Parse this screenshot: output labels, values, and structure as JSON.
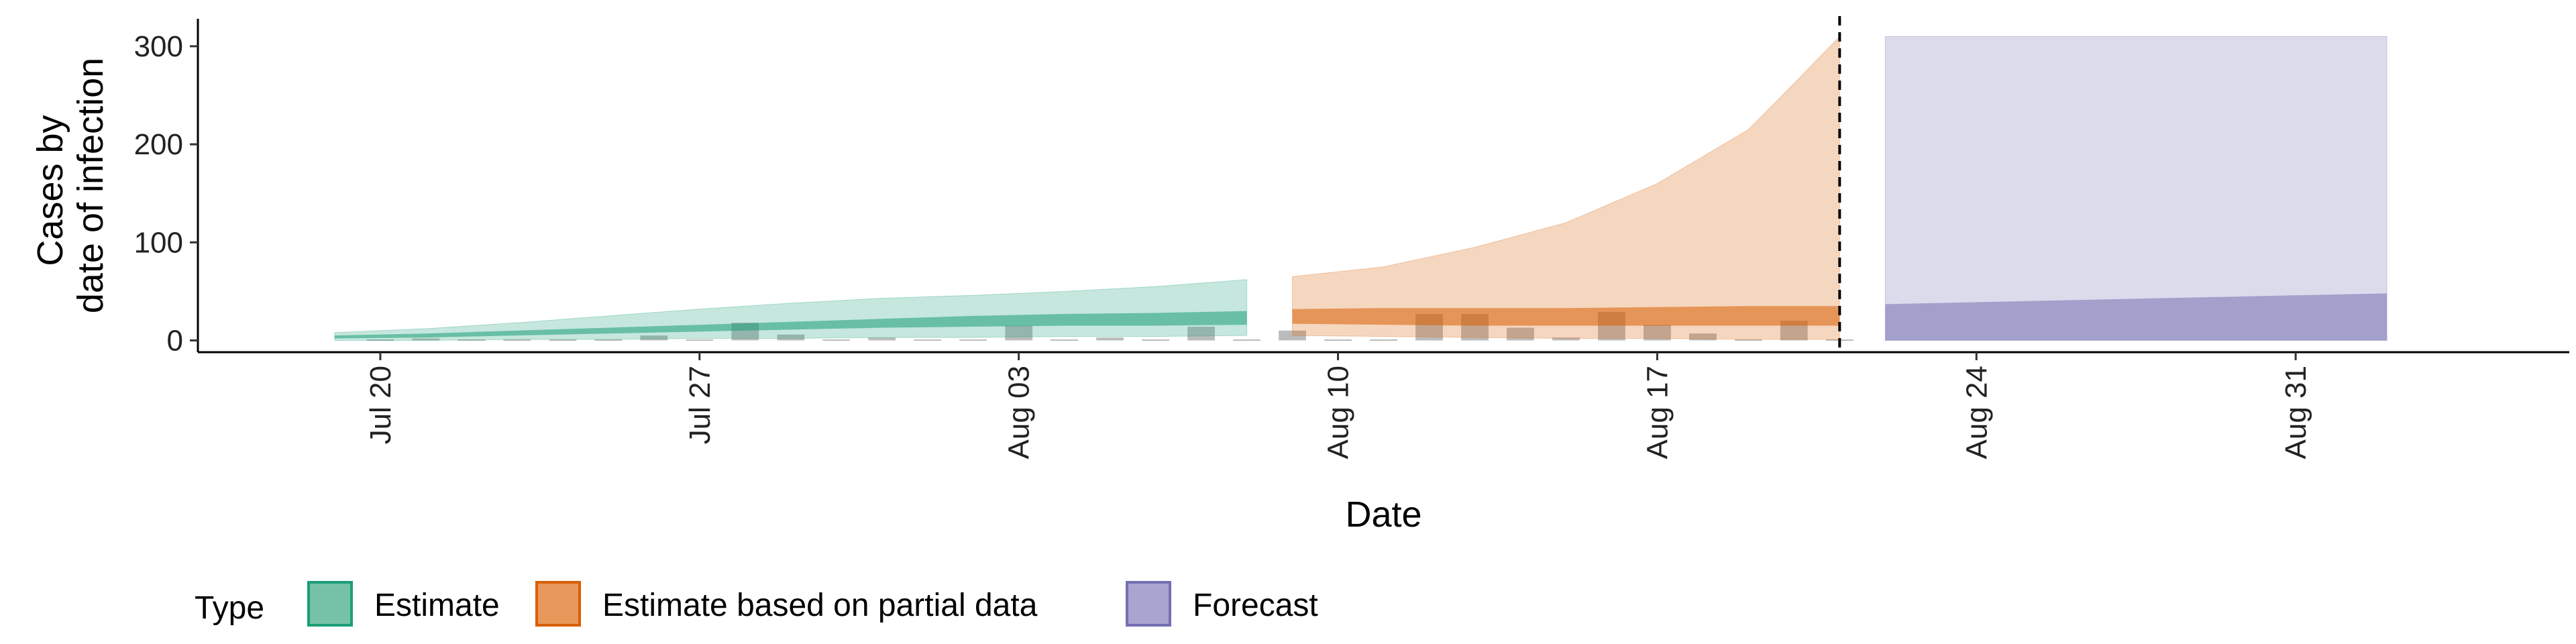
{
  "chart_data": {
    "type": "area",
    "xlabel": "Date",
    "ylabel_lines": [
      "Cases by",
      "date of infection"
    ],
    "x_range": [
      "2020-07-16",
      "2020-09-06"
    ],
    "ylim": [
      -12,
      328
    ],
    "y_ticks": [
      0,
      100,
      200,
      300
    ],
    "x_ticks": [
      {
        "date": "2020-07-20",
        "label": "Jul 20"
      },
      {
        "date": "2020-07-27",
        "label": "Jul 27"
      },
      {
        "date": "2020-08-03",
        "label": "Aug 03"
      },
      {
        "date": "2020-08-10",
        "label": "Aug 10"
      },
      {
        "date": "2020-08-17",
        "label": "Aug 17"
      },
      {
        "date": "2020-08-24",
        "label": "Aug 24"
      },
      {
        "date": "2020-08-31",
        "label": "Aug 31"
      }
    ],
    "vline_date": "2020-08-21",
    "grid": false,
    "legend": {
      "title": "Type",
      "position": "bottom",
      "items": [
        {
          "label": "Estimate",
          "fill": "#76c2a9",
          "stroke": "#1b9e77"
        },
        {
          "label": "Estimate based on partial data",
          "fill": "#e8985a",
          "stroke": "#d95f02"
        },
        {
          "label": "Forecast",
          "fill": "#a9a5d1",
          "stroke": "#7570b3"
        }
      ]
    },
    "observed_cases": {
      "color": "#a0a0a0",
      "points": [
        {
          "date": "2020-07-20",
          "value": 1
        },
        {
          "date": "2020-07-21",
          "value": 2
        },
        {
          "date": "2020-07-22",
          "value": 1
        },
        {
          "date": "2020-07-23",
          "value": 1
        },
        {
          "date": "2020-07-24",
          "value": 1
        },
        {
          "date": "2020-07-25",
          "value": 1
        },
        {
          "date": "2020-07-26",
          "value": 5
        },
        {
          "date": "2020-07-27",
          "value": 1
        },
        {
          "date": "2020-07-28",
          "value": 18
        },
        {
          "date": "2020-07-29",
          "value": 6
        },
        {
          "date": "2020-07-30",
          "value": 1
        },
        {
          "date": "2020-07-31",
          "value": 3
        },
        {
          "date": "2020-08-01",
          "value": 1
        },
        {
          "date": "2020-08-02",
          "value": 1
        },
        {
          "date": "2020-08-03",
          "value": 15
        },
        {
          "date": "2020-08-04",
          "value": 1
        },
        {
          "date": "2020-08-05",
          "value": 3
        },
        {
          "date": "2020-08-06",
          "value": 1
        },
        {
          "date": "2020-08-07",
          "value": 14
        },
        {
          "date": "2020-08-08",
          "value": 1
        },
        {
          "date": "2020-08-09",
          "value": 10
        },
        {
          "date": "2020-08-10",
          "value": 1
        },
        {
          "date": "2020-08-11",
          "value": 1
        },
        {
          "date": "2020-08-12",
          "value": 27
        },
        {
          "date": "2020-08-13",
          "value": 27
        },
        {
          "date": "2020-08-14",
          "value": 13
        },
        {
          "date": "2020-08-15",
          "value": 3
        },
        {
          "date": "2020-08-16",
          "value": 29
        },
        {
          "date": "2020-08-17",
          "value": 16
        },
        {
          "date": "2020-08-18",
          "value": 7
        },
        {
          "date": "2020-08-19",
          "value": 1
        },
        {
          "date": "2020-08-20",
          "value": 20
        },
        {
          "date": "2020-08-21",
          "value": 1
        }
      ]
    },
    "series": [
      {
        "type": "Estimate",
        "color": "#1b9e77",
        "dates": [
          "2020-07-19",
          "2020-07-21",
          "2020-07-23",
          "2020-07-25",
          "2020-07-27",
          "2020-07-29",
          "2020-07-31",
          "2020-08-02",
          "2020-08-04",
          "2020-08-06",
          "2020-08-08"
        ],
        "outer_lower": [
          0,
          0,
          1,
          1,
          2,
          2,
          3,
          3,
          4,
          4,
          5
        ],
        "outer_upper": [
          8,
          12,
          18,
          25,
          32,
          38,
          43,
          46,
          50,
          55,
          62
        ],
        "inner_lower": [
          2,
          3,
          5,
          7,
          9,
          11,
          13,
          14,
          15,
          15,
          16
        ],
        "inner_upper": [
          5,
          7,
          10,
          13,
          16,
          19,
          22,
          25,
          27,
          28,
          30
        ]
      },
      {
        "type": "Estimate based on partial data",
        "color": "#d95f02",
        "dates": [
          "2020-08-09",
          "2020-08-11",
          "2020-08-13",
          "2020-08-15",
          "2020-08-17",
          "2020-08-19",
          "2020-08-20",
          "2020-08-21"
        ],
        "outer_lower": [
          5,
          4,
          3,
          2,
          2,
          1,
          1,
          1
        ],
        "outer_upper": [
          65,
          75,
          95,
          120,
          160,
          215,
          262,
          310
        ],
        "inner_lower": [
          17,
          16,
          15,
          15,
          15,
          15,
          15,
          15
        ],
        "inner_upper": [
          32,
          33,
          33,
          33,
          34,
          35,
          35,
          35
        ]
      },
      {
        "type": "Forecast",
        "color": "#7570b3",
        "dates": [
          "2020-08-22",
          "2020-09-02"
        ],
        "outer_lower": [
          0,
          0
        ],
        "outer_upper": [
          310,
          310
        ],
        "inner_lower": [
          0,
          0
        ],
        "inner_upper": [
          37,
          48
        ]
      }
    ]
  }
}
